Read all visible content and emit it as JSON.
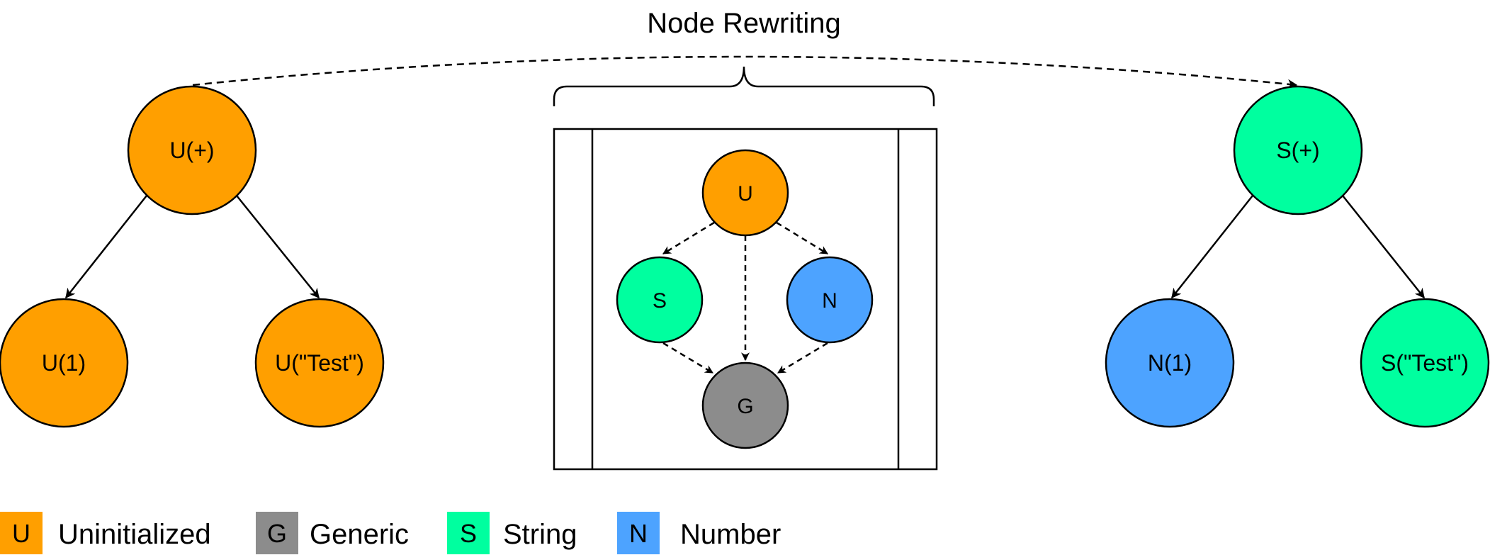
{
  "title": "Node Rewriting",
  "colors": {
    "uninitialized": "#FF9F00",
    "generic": "#8C8C8C",
    "string": "#00FF9F",
    "number": "#4DA3FF"
  },
  "left_tree": {
    "root": "U(+)",
    "left_child": "U(1)",
    "right_child": "U(\"Test\")"
  },
  "lattice": {
    "top": "U",
    "left": "S",
    "right": "N",
    "bottom": "G"
  },
  "right_tree": {
    "root": "S(+)",
    "left_child": "N(1)",
    "right_child": "S(\"Test\")"
  },
  "legend": [
    {
      "key": "U",
      "label": "Uninitialized",
      "color": "#FF9F00"
    },
    {
      "key": "G",
      "label": "Generic",
      "color": "#8C8C8C"
    },
    {
      "key": "S",
      "label": "String",
      "color": "#00FF9F"
    },
    {
      "key": "N",
      "label": "Number",
      "color": "#4DA3FF"
    }
  ]
}
